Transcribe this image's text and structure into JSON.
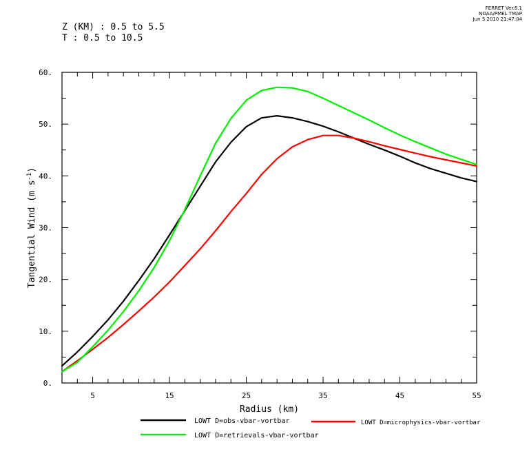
{
  "header": {
    "z_range": "Z (KM) : 0.5 to 5.5",
    "t_range": "T : 0.5 to 10.5",
    "ferret_lines": [
      "FERRET  Ver.6.1",
      "NOAA/PMEL TMAP",
      "Jun  5 2010 21:47:04"
    ]
  },
  "chart_data": {
    "type": "line",
    "xlabel": "Radius (km)",
    "ylabel": "Tangential Wind (m s",
    "ylabel_sup": "-1",
    "ylabel_end": ")",
    "xlim": [
      1,
      55
    ],
    "ylim": [
      0,
      60
    ],
    "xticks_labeled": [
      "5",
      "15",
      "25",
      "35",
      "45",
      "55"
    ],
    "yticks_labeled": [
      "0.",
      "10.",
      "20.",
      "30.",
      "40.",
      "50.",
      "60."
    ],
    "grid": false,
    "series": [
      {
        "name": "LOWT D=obs-vbar-vortbar",
        "color": "#000000",
        "x": [
          1,
          3,
          5,
          7,
          9,
          11,
          13,
          15,
          17,
          19,
          21,
          23,
          25,
          27,
          29,
          31,
          33,
          35,
          37,
          39,
          41,
          43,
          45,
          47,
          49,
          51,
          53,
          55
        ],
        "y": [
          3.3,
          6.0,
          9.0,
          12.2,
          15.8,
          19.8,
          24.0,
          28.6,
          33.3,
          38.0,
          42.7,
          46.5,
          49.5,
          51.2,
          51.6,
          51.2,
          50.5,
          49.6,
          48.5,
          47.3,
          46.1,
          45.0,
          43.8,
          42.5,
          41.4,
          40.5,
          39.6,
          38.9
        ]
      },
      {
        "name": "LOWT D=microphysics-vbar-vortbar",
        "color": "#ff0000",
        "x": [
          1,
          3,
          5,
          7,
          9,
          11,
          13,
          15,
          17,
          19,
          21,
          23,
          25,
          27,
          29,
          31,
          33,
          35,
          37,
          39,
          41,
          43,
          45,
          47,
          49,
          51,
          53,
          55
        ],
        "y": [
          2.2,
          4.3,
          6.5,
          8.8,
          11.3,
          13.9,
          16.6,
          19.5,
          22.7,
          25.9,
          29.4,
          33.1,
          36.6,
          40.3,
          43.3,
          45.6,
          47.0,
          47.8,
          47.8,
          47.3,
          46.6,
          45.8,
          45.1,
          44.4,
          43.7,
          43.1,
          42.5,
          41.9
        ]
      },
      {
        "name": "LOWT D=retrievals-vbar-vortbar",
        "color": "#00ee00",
        "x": [
          1,
          3,
          5,
          7,
          9,
          11,
          13,
          15,
          17,
          19,
          21,
          23,
          25,
          27,
          29,
          31,
          33,
          35,
          37,
          39,
          41,
          43,
          45,
          47,
          49,
          51,
          53,
          55
        ],
        "y": [
          2.2,
          4.0,
          7.0,
          10.2,
          13.8,
          17.8,
          22.3,
          27.5,
          33.5,
          40.0,
          46.3,
          51.1,
          54.6,
          56.5,
          57.1,
          57.0,
          56.3,
          55.0,
          53.6,
          52.2,
          50.8,
          49.3,
          47.9,
          46.6,
          45.4,
          44.2,
          43.2,
          42.2
        ]
      }
    ]
  }
}
